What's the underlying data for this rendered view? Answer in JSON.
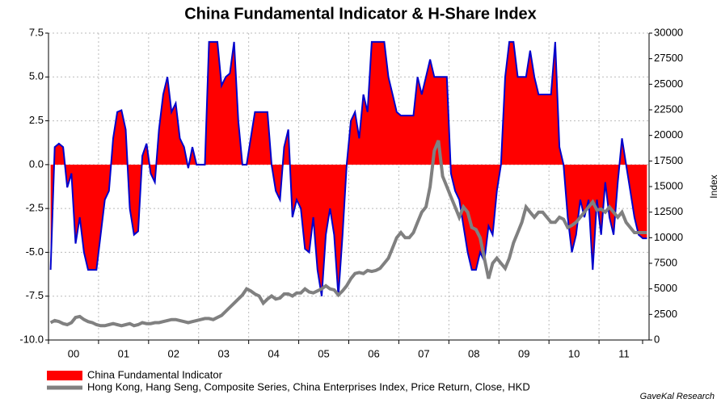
{
  "chart_data": {
    "type": "line",
    "title": "China Fundamental Indicator & H-Share Index",
    "categories": [
      null,
      null,
      null,
      null,
      null,
      null,
      "00",
      null,
      null,
      null,
      null,
      null,
      null,
      null,
      null,
      null,
      null,
      null,
      "01",
      null,
      null,
      null,
      null,
      null,
      null,
      null,
      null,
      null,
      null,
      null,
      "02",
      null,
      null,
      null,
      null,
      null,
      null,
      null,
      null,
      null,
      null,
      null,
      "03",
      null,
      null,
      null,
      null,
      null,
      null,
      null,
      null,
      null,
      null,
      null,
      "04",
      null,
      null,
      null,
      null,
      null,
      null,
      null,
      null,
      null,
      null,
      null,
      "05",
      null,
      null,
      null,
      null,
      null,
      null,
      null,
      null,
      null,
      null,
      null,
      "06",
      null,
      null,
      null,
      null,
      null,
      null,
      null,
      null,
      null,
      null,
      null,
      "07",
      null,
      null,
      null,
      null,
      null,
      null,
      null,
      null,
      null,
      null,
      null,
      "08",
      null,
      null,
      null,
      null,
      null,
      null,
      null,
      null,
      null,
      null,
      null,
      "09",
      null,
      null,
      null,
      null,
      null,
      null,
      null,
      null,
      null,
      null,
      null,
      "10",
      null,
      null,
      null,
      null,
      null,
      null,
      null,
      null,
      null,
      null,
      null,
      "11",
      null,
      null,
      null,
      null,
      null
    ],
    "series": [
      {
        "name": "China Fundamental Indicator",
        "color": "#ff0000",
        "line_color": "#0000cc",
        "area": true,
        "values": [
          -6,
          1,
          1.2,
          1,
          -1.3,
          -0.5,
          -4.5,
          -3,
          -5,
          -6,
          -6,
          -6,
          -4,
          -2,
          -1.5,
          1.5,
          3,
          3.1,
          2,
          -2.5,
          -4,
          -3.8,
          0.5,
          1.2,
          -0.5,
          -1,
          2,
          4,
          5,
          3,
          3.5,
          1.5,
          1,
          -0.2,
          1,
          0,
          0,
          0,
          7,
          7,
          7,
          4.5,
          5,
          5.2,
          7,
          2.5,
          0,
          0,
          1.5,
          3,
          3,
          3,
          3,
          0,
          -1.5,
          -2,
          1,
          2,
          -3,
          -2,
          -2.5,
          -4.8,
          -5,
          -3,
          -6,
          -7.5,
          -4,
          -2.5,
          -4,
          -7.5,
          -4,
          0,
          2.5,
          3,
          1.5,
          4,
          3,
          7,
          7,
          7,
          7,
          5,
          4,
          3,
          2.8,
          2.8,
          2.8,
          2.8,
          5,
          4,
          5,
          6,
          5,
          5,
          5,
          5,
          -0.5,
          -1.5,
          -2,
          -3.5,
          -5,
          -6,
          -6,
          -5,
          -5.5,
          -3.5,
          -4,
          -1.5,
          0,
          5,
          7,
          7,
          5,
          5,
          5,
          6.5,
          5,
          4,
          4,
          4,
          4,
          7,
          1,
          0,
          -3,
          -5,
          -4,
          -2,
          -3,
          -2,
          -6,
          -2,
          -4,
          -1,
          -3,
          -4,
          -1,
          1.5,
          0,
          -1.5,
          -3,
          -4,
          -4.2,
          -4.2
        ]
      },
      {
        "name": "Hong Kong, Hang Seng, Composite Series, China Enterprises Index, Price Return, Close, HKD",
        "color": "#808080",
        "axis": "y2",
        "values": [
          1700,
          1900,
          1800,
          1600,
          1500,
          1700,
          2200,
          2300,
          2000,
          1800,
          1700,
          1500,
          1400,
          1400,
          1500,
          1600,
          1500,
          1400,
          1500,
          1600,
          1400,
          1500,
          1700,
          1600,
          1600,
          1700,
          1700,
          1800,
          1900,
          2000,
          2000,
          1900,
          1800,
          1700,
          1800,
          1900,
          2000,
          2100,
          2100,
          2000,
          2200,
          2400,
          2800,
          3200,
          3600,
          4000,
          4400,
          5000,
          4800,
          4500,
          4300,
          3600,
          4000,
          4300,
          4000,
          4100,
          4500,
          4500,
          4300,
          4600,
          4600,
          5000,
          4700,
          4600,
          4800,
          5000,
          5300,
          5000,
          4900,
          4400,
          4800,
          5300,
          6000,
          6500,
          6600,
          6500,
          6800,
          6700,
          6800,
          7000,
          7500,
          8000,
          9000,
          10000,
          10500,
          10000,
          10000,
          10500,
          11500,
          12500,
          13000,
          15000,
          18500,
          19500,
          16000,
          15000,
          14000,
          13000,
          12000,
          13000,
          12500,
          11000,
          10800,
          10000,
          8000,
          6000,
          7500,
          8000,
          7500,
          7000,
          8000,
          9500,
          10500,
          11500,
          13000,
          12500,
          12000,
          12500,
          12500,
          12000,
          11500,
          11500,
          12000,
          11800,
          11000,
          11200,
          11500,
          12000,
          12500,
          13000,
          13500,
          12700,
          12800,
          12500,
          13000,
          12500,
          12000,
          12500,
          11500,
          11000,
          10500,
          10500,
          10500,
          10500
        ]
      }
    ],
    "ylim": [
      -10,
      7.5
    ],
    "yticks": [
      {
        "value": -10,
        "label": "-10.0"
      },
      -7.5,
      {
        "value": -5,
        "label": "-5.0"
      },
      -2.5,
      {
        "value": 0,
        "label": "0.0"
      },
      2.5,
      {
        "value": 5,
        "label": "5.0"
      },
      7.5
    ],
    "y2lim": [
      0,
      30000
    ],
    "y2ticks": [
      0,
      2500,
      5000,
      7500,
      10000,
      12500,
      15000,
      17500,
      20000,
      22500,
      25000,
      27500,
      30000
    ],
    "y2label": "Index",
    "source": "GaveKal Research",
    "grid": true
  }
}
